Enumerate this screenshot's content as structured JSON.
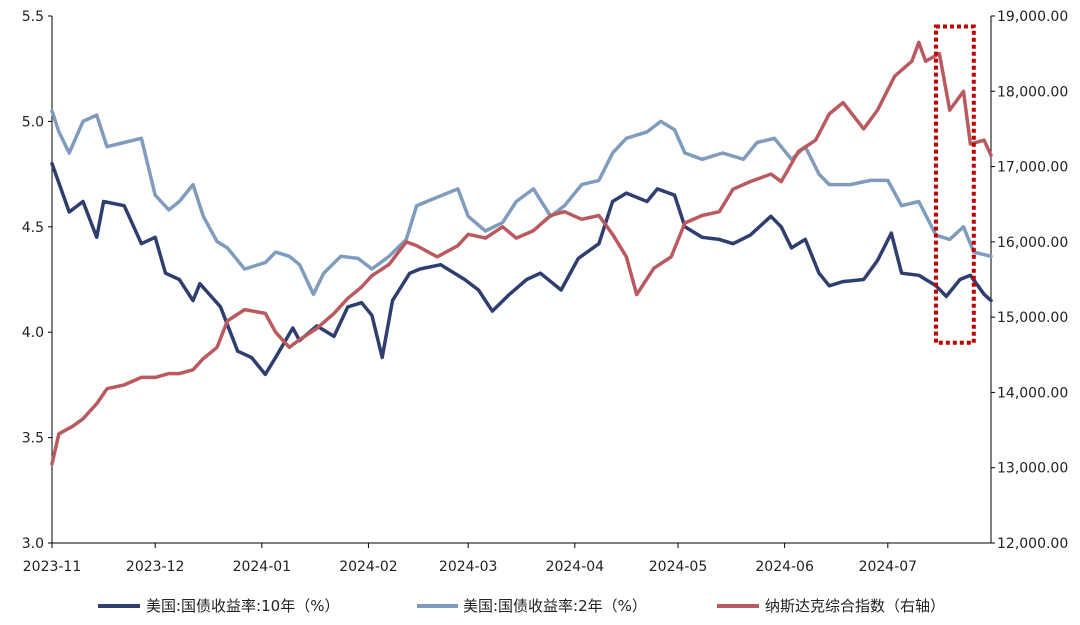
{
  "chart_data": {
    "type": "line",
    "x_ticks": [
      "2023-11",
      "2023-12",
      "2024-01",
      "2024-02",
      "2024-03",
      "2024-04",
      "2024-05",
      "2024-06",
      "2024-07"
    ],
    "y_left": {
      "min": 3.0,
      "max": 5.5,
      "ticks": [
        "3.0",
        "3.5",
        "4.0",
        "4.5",
        "5.0",
        "5.5"
      ]
    },
    "y_right": {
      "min": 12000,
      "max": 19000,
      "ticks": [
        "12,000.00",
        "13,000.00",
        "14,000.00",
        "15,000.00",
        "16,000.00",
        "17,000.00",
        "18,000.00",
        "19,000.00"
      ]
    },
    "x_range": [
      "2023-11-01",
      "2024-07-31"
    ],
    "series": [
      {
        "name": "美国:国债收益率:10年（%）",
        "axis": "left",
        "color": "#2e3e6e",
        "points": [
          [
            "2023-11-01",
            4.8
          ],
          [
            "2023-11-06",
            4.57
          ],
          [
            "2023-11-10",
            4.62
          ],
          [
            "2023-11-14",
            4.45
          ],
          [
            "2023-11-16",
            4.62
          ],
          [
            "2023-11-22",
            4.6
          ],
          [
            "2023-11-27",
            4.42
          ],
          [
            "2023-12-01",
            4.45
          ],
          [
            "2023-12-04",
            4.28
          ],
          [
            "2023-12-08",
            4.25
          ],
          [
            "2023-12-12",
            4.15
          ],
          [
            "2023-12-14",
            4.23
          ],
          [
            "2023-12-20",
            4.12
          ],
          [
            "2023-12-25",
            3.91
          ],
          [
            "2023-12-29",
            3.88
          ],
          [
            "2024-01-02",
            3.8
          ],
          [
            "2024-01-05",
            3.88
          ],
          [
            "2024-01-10",
            4.02
          ],
          [
            "2024-01-12",
            3.96
          ],
          [
            "2024-01-17",
            4.03
          ],
          [
            "2024-01-22",
            3.98
          ],
          [
            "2024-01-26",
            4.12
          ],
          [
            "2024-01-30",
            4.14
          ],
          [
            "2024-02-02",
            4.08
          ],
          [
            "2024-02-05",
            3.88
          ],
          [
            "2024-02-08",
            4.15
          ],
          [
            "2024-02-13",
            4.28
          ],
          [
            "2024-02-16",
            4.3
          ],
          [
            "2024-02-22",
            4.32
          ],
          [
            "2024-02-29",
            4.25
          ],
          [
            "2024-03-04",
            4.2
          ],
          [
            "2024-03-08",
            4.1
          ],
          [
            "2024-03-13",
            4.18
          ],
          [
            "2024-03-18",
            4.25
          ],
          [
            "2024-03-22",
            4.28
          ],
          [
            "2024-03-28",
            4.2
          ],
          [
            "2024-04-02",
            4.35
          ],
          [
            "2024-04-08",
            4.42
          ],
          [
            "2024-04-12",
            4.62
          ],
          [
            "2024-04-16",
            4.66
          ],
          [
            "2024-04-22",
            4.62
          ],
          [
            "2024-04-25",
            4.68
          ],
          [
            "2024-04-30",
            4.65
          ],
          [
            "2024-05-03",
            4.5
          ],
          [
            "2024-05-08",
            4.45
          ],
          [
            "2024-05-13",
            4.44
          ],
          [
            "2024-05-17",
            4.42
          ],
          [
            "2024-05-22",
            4.46
          ],
          [
            "2024-05-28",
            4.55
          ],
          [
            "2024-05-31",
            4.5
          ],
          [
            "2024-06-03",
            4.4
          ],
          [
            "2024-06-07",
            4.44
          ],
          [
            "2024-06-11",
            4.28
          ],
          [
            "2024-06-14",
            4.22
          ],
          [
            "2024-06-18",
            4.24
          ],
          [
            "2024-06-24",
            4.25
          ],
          [
            "2024-06-28",
            4.34
          ],
          [
            "2024-07-02",
            4.47
          ],
          [
            "2024-07-05",
            4.28
          ],
          [
            "2024-07-10",
            4.27
          ],
          [
            "2024-07-15",
            4.22
          ],
          [
            "2024-07-18",
            4.17
          ],
          [
            "2024-07-22",
            4.25
          ],
          [
            "2024-07-25",
            4.27
          ],
          [
            "2024-07-29",
            4.18
          ],
          [
            "2024-07-31",
            4.15
          ]
        ]
      },
      {
        "name": "美国:国债收益率:2年（%）",
        "axis": "left",
        "color": "#7f9bbd",
        "points": [
          [
            "2023-11-01",
            5.05
          ],
          [
            "2023-11-03",
            4.95
          ],
          [
            "2023-11-06",
            4.85
          ],
          [
            "2023-11-10",
            5.0
          ],
          [
            "2023-11-14",
            5.03
          ],
          [
            "2023-11-17",
            4.88
          ],
          [
            "2023-11-22",
            4.9
          ],
          [
            "2023-11-27",
            4.92
          ],
          [
            "2023-12-01",
            4.65
          ],
          [
            "2023-12-05",
            4.58
          ],
          [
            "2023-12-08",
            4.62
          ],
          [
            "2023-12-12",
            4.7
          ],
          [
            "2023-12-15",
            4.55
          ],
          [
            "2023-12-19",
            4.43
          ],
          [
            "2023-12-22",
            4.4
          ],
          [
            "2023-12-27",
            4.3
          ],
          [
            "2024-01-02",
            4.33
          ],
          [
            "2024-01-05",
            4.38
          ],
          [
            "2024-01-09",
            4.36
          ],
          [
            "2024-01-12",
            4.32
          ],
          [
            "2024-01-16",
            4.18
          ],
          [
            "2024-01-19",
            4.28
          ],
          [
            "2024-01-24",
            4.36
          ],
          [
            "2024-01-29",
            4.35
          ],
          [
            "2024-02-02",
            4.3
          ],
          [
            "2024-02-07",
            4.36
          ],
          [
            "2024-02-12",
            4.44
          ],
          [
            "2024-02-15",
            4.6
          ],
          [
            "2024-02-21",
            4.64
          ],
          [
            "2024-02-27",
            4.68
          ],
          [
            "2024-03-01",
            4.55
          ],
          [
            "2024-03-06",
            4.48
          ],
          [
            "2024-03-11",
            4.52
          ],
          [
            "2024-03-15",
            4.62
          ],
          [
            "2024-03-20",
            4.68
          ],
          [
            "2024-03-25",
            4.55
          ],
          [
            "2024-03-29",
            4.6
          ],
          [
            "2024-04-03",
            4.7
          ],
          [
            "2024-04-08",
            4.72
          ],
          [
            "2024-04-12",
            4.85
          ],
          [
            "2024-04-16",
            4.92
          ],
          [
            "2024-04-22",
            4.95
          ],
          [
            "2024-04-26",
            5.0
          ],
          [
            "2024-04-30",
            4.96
          ],
          [
            "2024-05-03",
            4.85
          ],
          [
            "2024-05-08",
            4.82
          ],
          [
            "2024-05-14",
            4.85
          ],
          [
            "2024-05-20",
            4.82
          ],
          [
            "2024-05-24",
            4.9
          ],
          [
            "2024-05-29",
            4.92
          ],
          [
            "2024-06-03",
            4.82
          ],
          [
            "2024-06-07",
            4.88
          ],
          [
            "2024-06-11",
            4.75
          ],
          [
            "2024-06-14",
            4.7
          ],
          [
            "2024-06-20",
            4.7
          ],
          [
            "2024-06-26",
            4.72
          ],
          [
            "2024-07-01",
            4.72
          ],
          [
            "2024-07-05",
            4.6
          ],
          [
            "2024-07-10",
            4.62
          ],
          [
            "2024-07-15",
            4.46
          ],
          [
            "2024-07-19",
            4.44
          ],
          [
            "2024-07-23",
            4.5
          ],
          [
            "2024-07-26",
            4.38
          ],
          [
            "2024-07-31",
            4.36
          ]
        ]
      },
      {
        "name": "纳斯达克综合指数（右轴）",
        "axis": "right",
        "color": "#b85a60",
        "points": [
          [
            "2023-11-01",
            13050
          ],
          [
            "2023-11-03",
            13450
          ],
          [
            "2023-11-07",
            13550
          ],
          [
            "2023-11-10",
            13650
          ],
          [
            "2023-11-14",
            13850
          ],
          [
            "2023-11-17",
            14050
          ],
          [
            "2023-11-22",
            14100
          ],
          [
            "2023-11-27",
            14200
          ],
          [
            "2023-12-01",
            14200
          ],
          [
            "2023-12-05",
            14250
          ],
          [
            "2023-12-08",
            14250
          ],
          [
            "2023-12-12",
            14300
          ],
          [
            "2023-12-15",
            14450
          ],
          [
            "2023-12-19",
            14600
          ],
          [
            "2023-12-22",
            14950
          ],
          [
            "2023-12-27",
            15100
          ],
          [
            "2024-01-02",
            15050
          ],
          [
            "2024-01-05",
            14800
          ],
          [
            "2024-01-09",
            14600
          ],
          [
            "2024-01-12",
            14700
          ],
          [
            "2024-01-17",
            14850
          ],
          [
            "2024-01-22",
            15050
          ],
          [
            "2024-01-26",
            15250
          ],
          [
            "2024-01-30",
            15400
          ],
          [
            "2024-02-02",
            15550
          ],
          [
            "2024-02-07",
            15700
          ],
          [
            "2024-02-12",
            16000
          ],
          [
            "2024-02-15",
            15950
          ],
          [
            "2024-02-21",
            15800
          ],
          [
            "2024-02-27",
            15950
          ],
          [
            "2024-03-01",
            16100
          ],
          [
            "2024-03-06",
            16050
          ],
          [
            "2024-03-11",
            16200
          ],
          [
            "2024-03-15",
            16050
          ],
          [
            "2024-03-20",
            16150
          ],
          [
            "2024-03-25",
            16350
          ],
          [
            "2024-03-29",
            16400
          ],
          [
            "2024-04-03",
            16300
          ],
          [
            "2024-04-08",
            16350
          ],
          [
            "2024-04-12",
            16100
          ],
          [
            "2024-04-16",
            15800
          ],
          [
            "2024-04-19",
            15300
          ],
          [
            "2024-04-24",
            15650
          ],
          [
            "2024-04-29",
            15800
          ],
          [
            "2024-05-03",
            16250
          ],
          [
            "2024-05-08",
            16350
          ],
          [
            "2024-05-13",
            16400
          ],
          [
            "2024-05-17",
            16700
          ],
          [
            "2024-05-22",
            16800
          ],
          [
            "2024-05-28",
            16900
          ],
          [
            "2024-05-31",
            16800
          ],
          [
            "2024-06-05",
            17200
          ],
          [
            "2024-06-10",
            17350
          ],
          [
            "2024-06-14",
            17700
          ],
          [
            "2024-06-18",
            17850
          ],
          [
            "2024-06-24",
            17500
          ],
          [
            "2024-06-28",
            17750
          ],
          [
            "2024-07-03",
            18200
          ],
          [
            "2024-07-08",
            18400
          ],
          [
            "2024-07-10",
            18650
          ],
          [
            "2024-07-12",
            18400
          ],
          [
            "2024-07-16",
            18500
          ],
          [
            "2024-07-19",
            17750
          ],
          [
            "2024-07-23",
            18000
          ],
          [
            "2024-07-25",
            17300
          ],
          [
            "2024-07-29",
            17350
          ],
          [
            "2024-07-31",
            17150
          ]
        ]
      }
    ],
    "highlight_box": {
      "x_start": "2024-07-15",
      "x_end": "2024-07-26",
      "y_top_left": 5.45,
      "y_bottom_left": 3.95,
      "color": "#c00000",
      "style": "dotted"
    },
    "legend_position": "bottom",
    "grid": false
  }
}
